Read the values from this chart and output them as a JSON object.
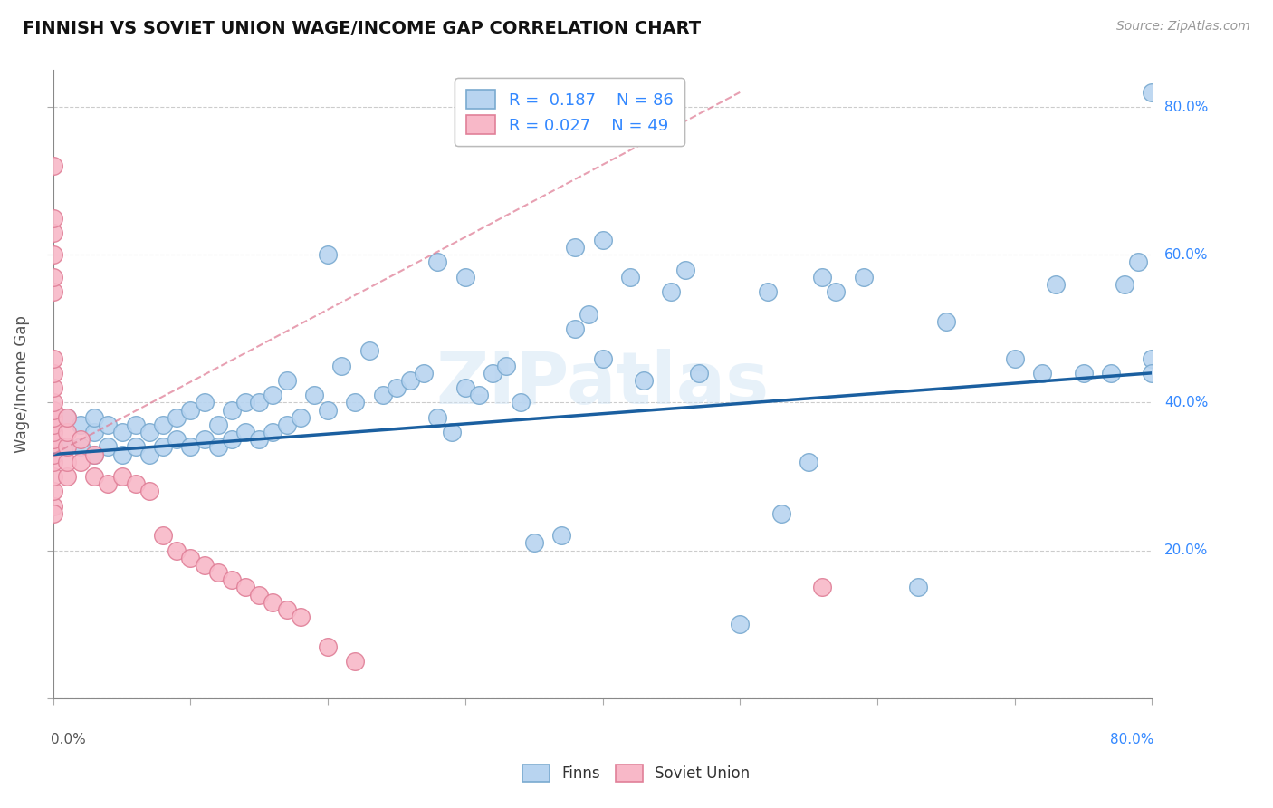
{
  "title": "FINNISH VS SOVIET UNION WAGE/INCOME GAP CORRELATION CHART",
  "source": "Source: ZipAtlas.com",
  "ylabel": "Wage/Income Gap",
  "watermark": "ZIPatlas",
  "legend_finn_R": "0.187",
  "legend_finn_N": "86",
  "legend_soviet_R": "0.027",
  "legend_soviet_N": "49",
  "finn_color": "#b8d4f0",
  "finn_edge": "#7aaad0",
  "soviet_color": "#f8b8c8",
  "soviet_edge": "#e08098",
  "finn_line_color": "#1a5fa0",
  "soviet_line_color": "#e08098",
  "xlim": [
    0.0,
    0.8
  ],
  "ylim": [
    0.0,
    0.85
  ],
  "finns_x": [
    0.01,
    0.01,
    0.02,
    0.02,
    0.03,
    0.03,
    0.03,
    0.04,
    0.04,
    0.05,
    0.05,
    0.06,
    0.06,
    0.07,
    0.07,
    0.08,
    0.08,
    0.09,
    0.09,
    0.1,
    0.1,
    0.11,
    0.11,
    0.12,
    0.12,
    0.13,
    0.13,
    0.14,
    0.14,
    0.15,
    0.15,
    0.16,
    0.16,
    0.17,
    0.17,
    0.18,
    0.19,
    0.2,
    0.21,
    0.22,
    0.23,
    0.24,
    0.25,
    0.26,
    0.27,
    0.28,
    0.29,
    0.3,
    0.31,
    0.32,
    0.33,
    0.34,
    0.35,
    0.37,
    0.38,
    0.39,
    0.4,
    0.42,
    0.43,
    0.45,
    0.46,
    0.47,
    0.5,
    0.52,
    0.53,
    0.55,
    0.56,
    0.57,
    0.59,
    0.63,
    0.65,
    0.7,
    0.72,
    0.73,
    0.75,
    0.77,
    0.78,
    0.79,
    0.8,
    0.8,
    0.8,
    0.4,
    0.38,
    0.2,
    0.28,
    0.3
  ],
  "finns_y": [
    0.34,
    0.38,
    0.34,
    0.37,
    0.33,
    0.36,
    0.38,
    0.34,
    0.37,
    0.33,
    0.36,
    0.34,
    0.37,
    0.33,
    0.36,
    0.34,
    0.37,
    0.35,
    0.38,
    0.34,
    0.39,
    0.35,
    0.4,
    0.34,
    0.37,
    0.35,
    0.39,
    0.36,
    0.4,
    0.35,
    0.4,
    0.36,
    0.41,
    0.37,
    0.43,
    0.38,
    0.41,
    0.39,
    0.45,
    0.4,
    0.47,
    0.41,
    0.42,
    0.43,
    0.44,
    0.38,
    0.36,
    0.42,
    0.41,
    0.44,
    0.45,
    0.4,
    0.21,
    0.22,
    0.5,
    0.52,
    0.46,
    0.57,
    0.43,
    0.55,
    0.58,
    0.44,
    0.1,
    0.55,
    0.25,
    0.32,
    0.57,
    0.55,
    0.57,
    0.15,
    0.51,
    0.46,
    0.44,
    0.56,
    0.44,
    0.44,
    0.56,
    0.59,
    0.46,
    0.44,
    0.82,
    0.62,
    0.61,
    0.6,
    0.59,
    0.57
  ],
  "soviets_x": [
    0.0,
    0.0,
    0.0,
    0.0,
    0.0,
    0.0,
    0.0,
    0.0,
    0.0,
    0.0,
    0.0,
    0.0,
    0.0,
    0.0,
    0.0,
    0.0,
    0.0,
    0.0,
    0.0,
    0.0,
    0.0,
    0.01,
    0.01,
    0.01,
    0.01,
    0.01,
    0.02,
    0.02,
    0.03,
    0.03,
    0.04,
    0.05,
    0.06,
    0.07,
    0.08,
    0.09,
    0.1,
    0.11,
    0.12,
    0.13,
    0.14,
    0.15,
    0.16,
    0.17,
    0.18,
    0.2,
    0.22,
    0.56,
    0.0
  ],
  "soviets_y": [
    0.26,
    0.28,
    0.3,
    0.32,
    0.33,
    0.34,
    0.35,
    0.36,
    0.37,
    0.38,
    0.39,
    0.4,
    0.42,
    0.44,
    0.46,
    0.55,
    0.57,
    0.6,
    0.63,
    0.65,
    0.72,
    0.3,
    0.32,
    0.34,
    0.36,
    0.38,
    0.32,
    0.35,
    0.3,
    0.33,
    0.29,
    0.3,
    0.29,
    0.28,
    0.22,
    0.2,
    0.19,
    0.18,
    0.17,
    0.16,
    0.15,
    0.14,
    0.13,
    0.12,
    0.11,
    0.07,
    0.05,
    0.15,
    0.25
  ],
  "finn_trendline_x": [
    0.0,
    0.8
  ],
  "finn_trendline_y": [
    0.33,
    0.44
  ],
  "soviet_trendline_x": [
    0.0,
    0.5
  ],
  "soviet_trendline_y": [
    0.33,
    0.82
  ]
}
